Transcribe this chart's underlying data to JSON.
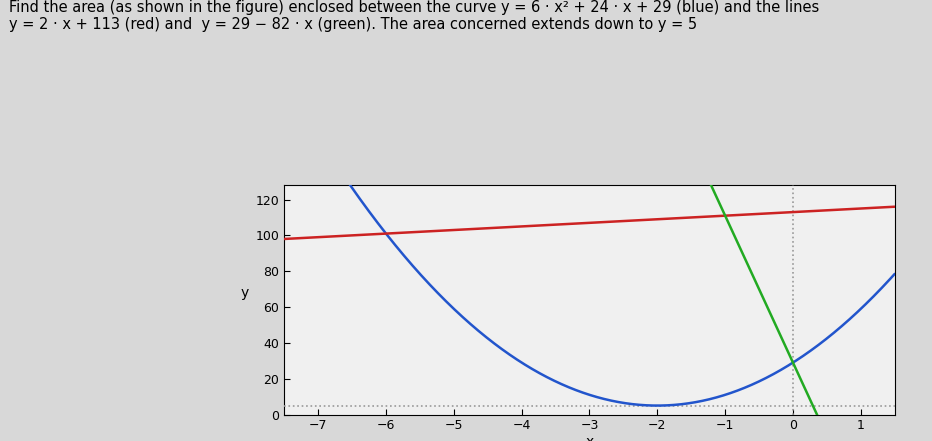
{
  "title_line1": "Find the area (as shown in the figure) enclosed between the curve y = 6 · x² + 24 · x + 29 (blue) and the lines",
  "title_line2": "y = 2 · x + 113 (red) and  y = 29 − 82 · x (green). The area concerned extends down to y = 5",
  "blue_color": "#2255cc",
  "red_color": "#cc2222",
  "green_color": "#22aa22",
  "dotted_color": "#999999",
  "xlim": [
    -7.5,
    1.5
  ],
  "ylim": [
    0,
    128
  ],
  "x_ticks": [
    -7,
    -6,
    -5,
    -4,
    -3,
    -2,
    -1,
    0,
    1
  ],
  "y_ticks": [
    0,
    20,
    40,
    60,
    80,
    100,
    120
  ],
  "xlabel": "x",
  "ylabel": "y",
  "y_dotted": 5,
  "x_dotted": 0,
  "figsize": [
    9.32,
    4.41
  ],
  "dpi": 100,
  "title_fontsize": 10.5,
  "bg_color": "#d8d8d8",
  "plot_bg": "#f0f0f0"
}
